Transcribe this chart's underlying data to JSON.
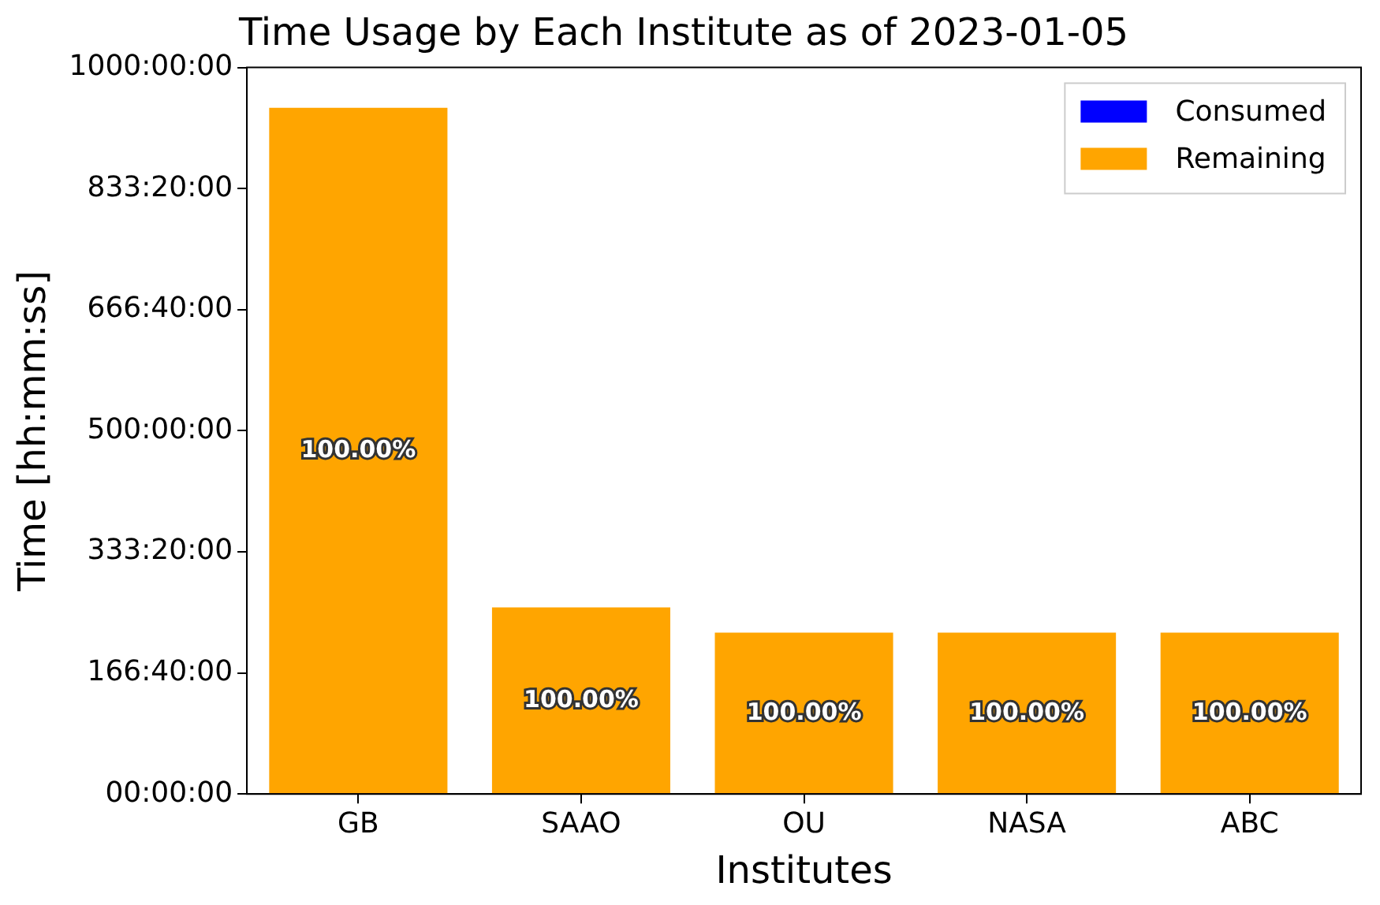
{
  "chart_data": {
    "type": "bar",
    "title": "Time Usage by Each Institute as of 2023-01-05",
    "xlabel": "Institutes",
    "ylabel": "Time [hh:mm:ss]",
    "categories": [
      "GB",
      "SAAO",
      "OU",
      "NASA",
      "ABC"
    ],
    "stacked": true,
    "series": [
      {
        "name": "Consumed",
        "color": "#0000ff",
        "values": [
          0,
          0,
          0,
          0,
          0
        ]
      },
      {
        "name": "Remaining",
        "color": "#ffa500",
        "values": [
          3400000,
          925000,
          800000,
          800000,
          800000
        ]
      }
    ],
    "annotations": [
      "100.00%",
      "100.00%",
      "100.00%",
      "100.00%",
      "100.00%"
    ],
    "ylim": [
      0,
      3600000
    ],
    "yticks": [
      {
        "value": 0,
        "label": "00:00:00"
      },
      {
        "value": 600000,
        "label": "166:40:00"
      },
      {
        "value": 1200000,
        "label": "333:20:00"
      },
      {
        "value": 1800000,
        "label": "500:00:00"
      },
      {
        "value": 2400000,
        "label": "666:40:00"
      },
      {
        "value": 3000000,
        "label": "833:20:00"
      },
      {
        "value": 3600000,
        "label": "1000:00:00"
      }
    ],
    "legend": "top right",
    "grid": false
  }
}
